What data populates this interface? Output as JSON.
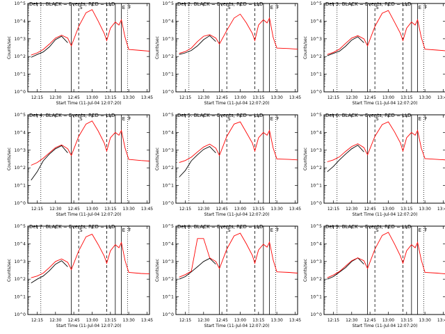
{
  "common": {
    "ylabel": "Counts/sec",
    "xlabel": "Start Time (11-Jul-04 12:07:20)",
    "x_ticks": [
      "12:15",
      "12:30",
      "12:45",
      "13:00",
      "13:15",
      "13:30",
      "13:45"
    ],
    "y_ticks": [
      "10^0",
      "10^1",
      "10^2",
      "10^3",
      "10^4",
      "10^5"
    ],
    "xlim": [
      "12:07:20",
      "13:47"
    ],
    "ylim": [
      1,
      100000
    ],
    "y_scale": "log",
    "colors": {
      "events": "#000000",
      "lld": "#ff0000"
    },
    "markers": {
      "solid": [
        "12:43",
        "13:19",
        "13:24"
      ],
      "dashed": [
        "12:49",
        "13:12"
      ],
      "dotted": [
        "12:18",
        "13:29"
      ],
      "letters": [
        "S",
        "E",
        "F"
      ]
    },
    "marker_letters_at": [
      "12:49",
      "13:24",
      "13:29"
    ]
  },
  "chart_data": [
    {
      "type": "line",
      "title": "Det 1: BLACK = Events, RED = LLD",
      "x": [
        "12:10",
        "12:15",
        "12:20",
        "12:25",
        "12:30",
        "12:35",
        "12:40",
        "12:43",
        "12:49",
        "12:55",
        "13:00",
        "13:05",
        "13:10",
        "13:12",
        "13:15",
        "13:19",
        "13:22",
        "13:24",
        "13:27",
        "13:30",
        "13:40",
        "13:47"
      ],
      "series": [
        {
          "name": "Events",
          "values": [
            90,
            130,
            180,
            350,
            900,
            1400,
            600,
            null,
            null,
            null,
            null,
            null,
            null,
            null,
            null,
            null,
            null,
            null,
            null,
            null,
            null,
            null
          ]
        },
        {
          "name": "LLD",
          "values": [
            120,
            160,
            250,
            500,
            1100,
            1600,
            1100,
            400,
            5000,
            30000,
            45000,
            10000,
            2000,
            800,
            4000,
            9000,
            6000,
            12000,
            1200,
            250,
            220,
            200
          ]
        }
      ]
    },
    {
      "type": "line",
      "title": "Det 2: BLACK = Events, RED = LLD",
      "x": [
        "12:10",
        "12:15",
        "12:20",
        "12:25",
        "12:30",
        "12:35",
        "12:40",
        "12:43",
        "12:49",
        "12:55",
        "13:00",
        "13:05",
        "13:10",
        "13:12",
        "13:15",
        "13:19",
        "13:22",
        "13:24",
        "13:27",
        "13:30",
        "13:40",
        "13:47"
      ],
      "series": [
        {
          "name": "Events",
          "values": [
            130,
            160,
            220,
            400,
            900,
            1500,
            700,
            null,
            null,
            null,
            null,
            null,
            null,
            null,
            null,
            null,
            null,
            null,
            null,
            null,
            null,
            null
          ]
        },
        {
          "name": "LLD",
          "values": [
            150,
            190,
            300,
            700,
            1400,
            1700,
            1100,
            500,
            3000,
            15000,
            25000,
            8000,
            2000,
            800,
            6000,
            12000,
            8000,
            15000,
            1200,
            300,
            280,
            260
          ]
        }
      ]
    },
    {
      "type": "line",
      "title": "Det 3: BLACK = Events, RED = LLD",
      "x": [
        "12:10",
        "12:15",
        "12:20",
        "12:25",
        "12:30",
        "12:35",
        "12:40",
        "12:43",
        "12:49",
        "12:55",
        "13:00",
        "13:05",
        "13:10",
        "13:12",
        "13:15",
        "13:19",
        "13:22",
        "13:24",
        "13:27",
        "13:30",
        "13:40",
        "13:47"
      ],
      "series": [
        {
          "name": "Events",
          "values": [
            110,
            150,
            200,
            380,
            850,
            1300,
            600,
            null,
            null,
            null,
            null,
            null,
            null,
            null,
            null,
            null,
            null,
            null,
            null,
            null,
            null,
            null
          ]
        },
        {
          "name": "LLD",
          "values": [
            130,
            170,
            260,
            550,
            1100,
            1500,
            1000,
            400,
            5000,
            28000,
            40000,
            9000,
            2000,
            800,
            4000,
            9000,
            6000,
            12000,
            1200,
            260,
            230,
            210
          ]
        }
      ]
    },
    {
      "type": "line",
      "title": "Det 4: BLACK = Events, RED = LLD",
      "x": [
        "12:10",
        "12:15",
        "12:20",
        "12:25",
        "12:30",
        "12:35",
        "12:40",
        "12:43",
        "12:49",
        "12:55",
        "13:00",
        "13:05",
        "13:10",
        "13:12",
        "13:15",
        "13:19",
        "13:22",
        "13:24",
        "13:27",
        "13:30",
        "13:40",
        "13:47"
      ],
      "series": [
        {
          "name": "Events",
          "values": [
            20,
            60,
            250,
            600,
            1200,
            1800,
            700,
            null,
            null,
            null,
            null,
            null,
            null,
            null,
            null,
            null,
            null,
            null,
            null,
            null,
            null,
            null
          ]
        },
        {
          "name": "LLD",
          "values": [
            140,
            200,
            350,
            700,
            1400,
            2000,
            1200,
            500,
            6000,
            30000,
            45000,
            12000,
            2500,
            900,
            5000,
            10000,
            7000,
            13000,
            1300,
            300,
            260,
            240
          ]
        }
      ]
    },
    {
      "type": "line",
      "title": "Det 5: BLACK = Events, RED = LLD",
      "x": [
        "12:10",
        "12:15",
        "12:20",
        "12:25",
        "12:30",
        "12:35",
        "12:40",
        "12:43",
        "12:49",
        "12:55",
        "13:00",
        "13:05",
        "13:10",
        "13:12",
        "13:15",
        "13:19",
        "13:22",
        "13:24",
        "13:27",
        "13:30",
        "13:40",
        "13:47"
      ],
      "series": [
        {
          "name": "Events",
          "values": [
            30,
            70,
            250,
            550,
            1100,
            1600,
            700,
            null,
            null,
            null,
            null,
            null,
            null,
            null,
            null,
            null,
            null,
            null,
            null,
            null,
            null,
            null
          ]
        },
        {
          "name": "LLD",
          "values": [
            200,
            260,
            400,
            800,
            1500,
            2200,
            1300,
            500,
            6000,
            30000,
            40000,
            10000,
            2500,
            900,
            5000,
            10000,
            7000,
            13000,
            1300,
            320,
            300,
            280
          ]
        }
      ]
    },
    {
      "type": "line",
      "title": "Det 6: BLACK = Events, RED = LLD",
      "x": [
        "12:10",
        "12:15",
        "12:20",
        "12:25",
        "12:30",
        "12:35",
        "12:40",
        "12:43",
        "12:49",
        "12:55",
        "13:00",
        "13:05",
        "13:10",
        "13:12",
        "13:15",
        "13:19",
        "13:22",
        "13:24",
        "13:27",
        "13:30",
        "13:40",
        "13:47"
      ],
      "series": [
        {
          "name": "Events",
          "values": [
            60,
            120,
            280,
            600,
            1200,
            1900,
            800,
            null,
            null,
            null,
            null,
            null,
            null,
            null,
            null,
            null,
            null,
            null,
            null,
            null,
            null,
            null
          ]
        },
        {
          "name": "LLD",
          "values": [
            220,
            280,
            420,
            850,
            1600,
            2300,
            1400,
            550,
            6000,
            28000,
            40000,
            11000,
            2500,
            900,
            5000,
            10000,
            7000,
            13000,
            1300,
            330,
            300,
            280
          ]
        }
      ]
    },
    {
      "type": "line",
      "title": "Det 7: BLACK = Events, RED = LLD",
      "x": [
        "12:10",
        "12:15",
        "12:20",
        "12:25",
        "12:30",
        "12:35",
        "12:40",
        "12:43",
        "12:49",
        "12:55",
        "13:00",
        "13:05",
        "13:10",
        "13:12",
        "13:15",
        "13:19",
        "13:22",
        "13:24",
        "13:27",
        "13:30",
        "13:40",
        "13:47"
      ],
      "series": [
        {
          "name": "Events",
          "values": [
            60,
            100,
            150,
            300,
            700,
            1100,
            500,
            null,
            null,
            null,
            null,
            null,
            null,
            null,
            null,
            null,
            null,
            null,
            null,
            null,
            null,
            null
          ]
        },
        {
          "name": "LLD",
          "values": [
            120,
            150,
            220,
            450,
            1000,
            1400,
            900,
            350,
            4000,
            25000,
            35000,
            9000,
            2000,
            800,
            4000,
            9000,
            6000,
            12000,
            1100,
            240,
            210,
            200
          ]
        }
      ]
    },
    {
      "type": "line",
      "title": "Det 8: BLACK = Events, RED = LLD",
      "x": [
        "12:10",
        "12:15",
        "12:20",
        "12:25",
        "12:30",
        "12:35",
        "12:40",
        "12:43",
        "12:49",
        "12:55",
        "13:00",
        "13:05",
        "13:10",
        "13:12",
        "13:15",
        "13:19",
        "13:22",
        "13:24",
        "13:27",
        "13:30",
        "13:40",
        "13:47"
      ],
      "series": [
        {
          "name": "Events",
          "values": [
            100,
            140,
            260,
            500,
            1000,
            1500,
            700,
            null,
            null,
            null,
            null,
            null,
            null,
            null,
            null,
            null,
            null,
            null,
            null,
            null,
            null,
            null
          ]
        },
        {
          "name": "LLD",
          "values": [
            130,
            180,
            280,
            20000,
            20000,
            1600,
            1000,
            400,
            5000,
            28000,
            40000,
            10000,
            2200,
            800,
            4500,
            9500,
            6500,
            12500,
            1200,
            260,
            240,
            220
          ]
        }
      ]
    },
    {
      "type": "line",
      "title": "Det 9: BLACK = Events, RED = LLD",
      "x": [
        "12:10",
        "12:15",
        "12:20",
        "12:25",
        "12:30",
        "12:35",
        "12:40",
        "12:43",
        "12:49",
        "12:55",
        "13:00",
        "13:05",
        "13:10",
        "13:12",
        "13:15",
        "13:19",
        "13:22",
        "13:24",
        "13:27",
        "13:30",
        "13:40",
        "13:47"
      ],
      "series": [
        {
          "name": "Events",
          "values": [
            100,
            140,
            250,
            450,
            1000,
            1600,
            700,
            null,
            null,
            null,
            null,
            null,
            null,
            null,
            null,
            null,
            null,
            null,
            null,
            null,
            null,
            null
          ]
        },
        {
          "name": "LLD",
          "values": [
            120,
            170,
            270,
            550,
            1100,
            1600,
            1100,
            400,
            5000,
            30000,
            45000,
            10000,
            2000,
            800,
            4000,
            9000,
            6000,
            12000,
            1200,
            240,
            220,
            200
          ]
        }
      ]
    }
  ]
}
